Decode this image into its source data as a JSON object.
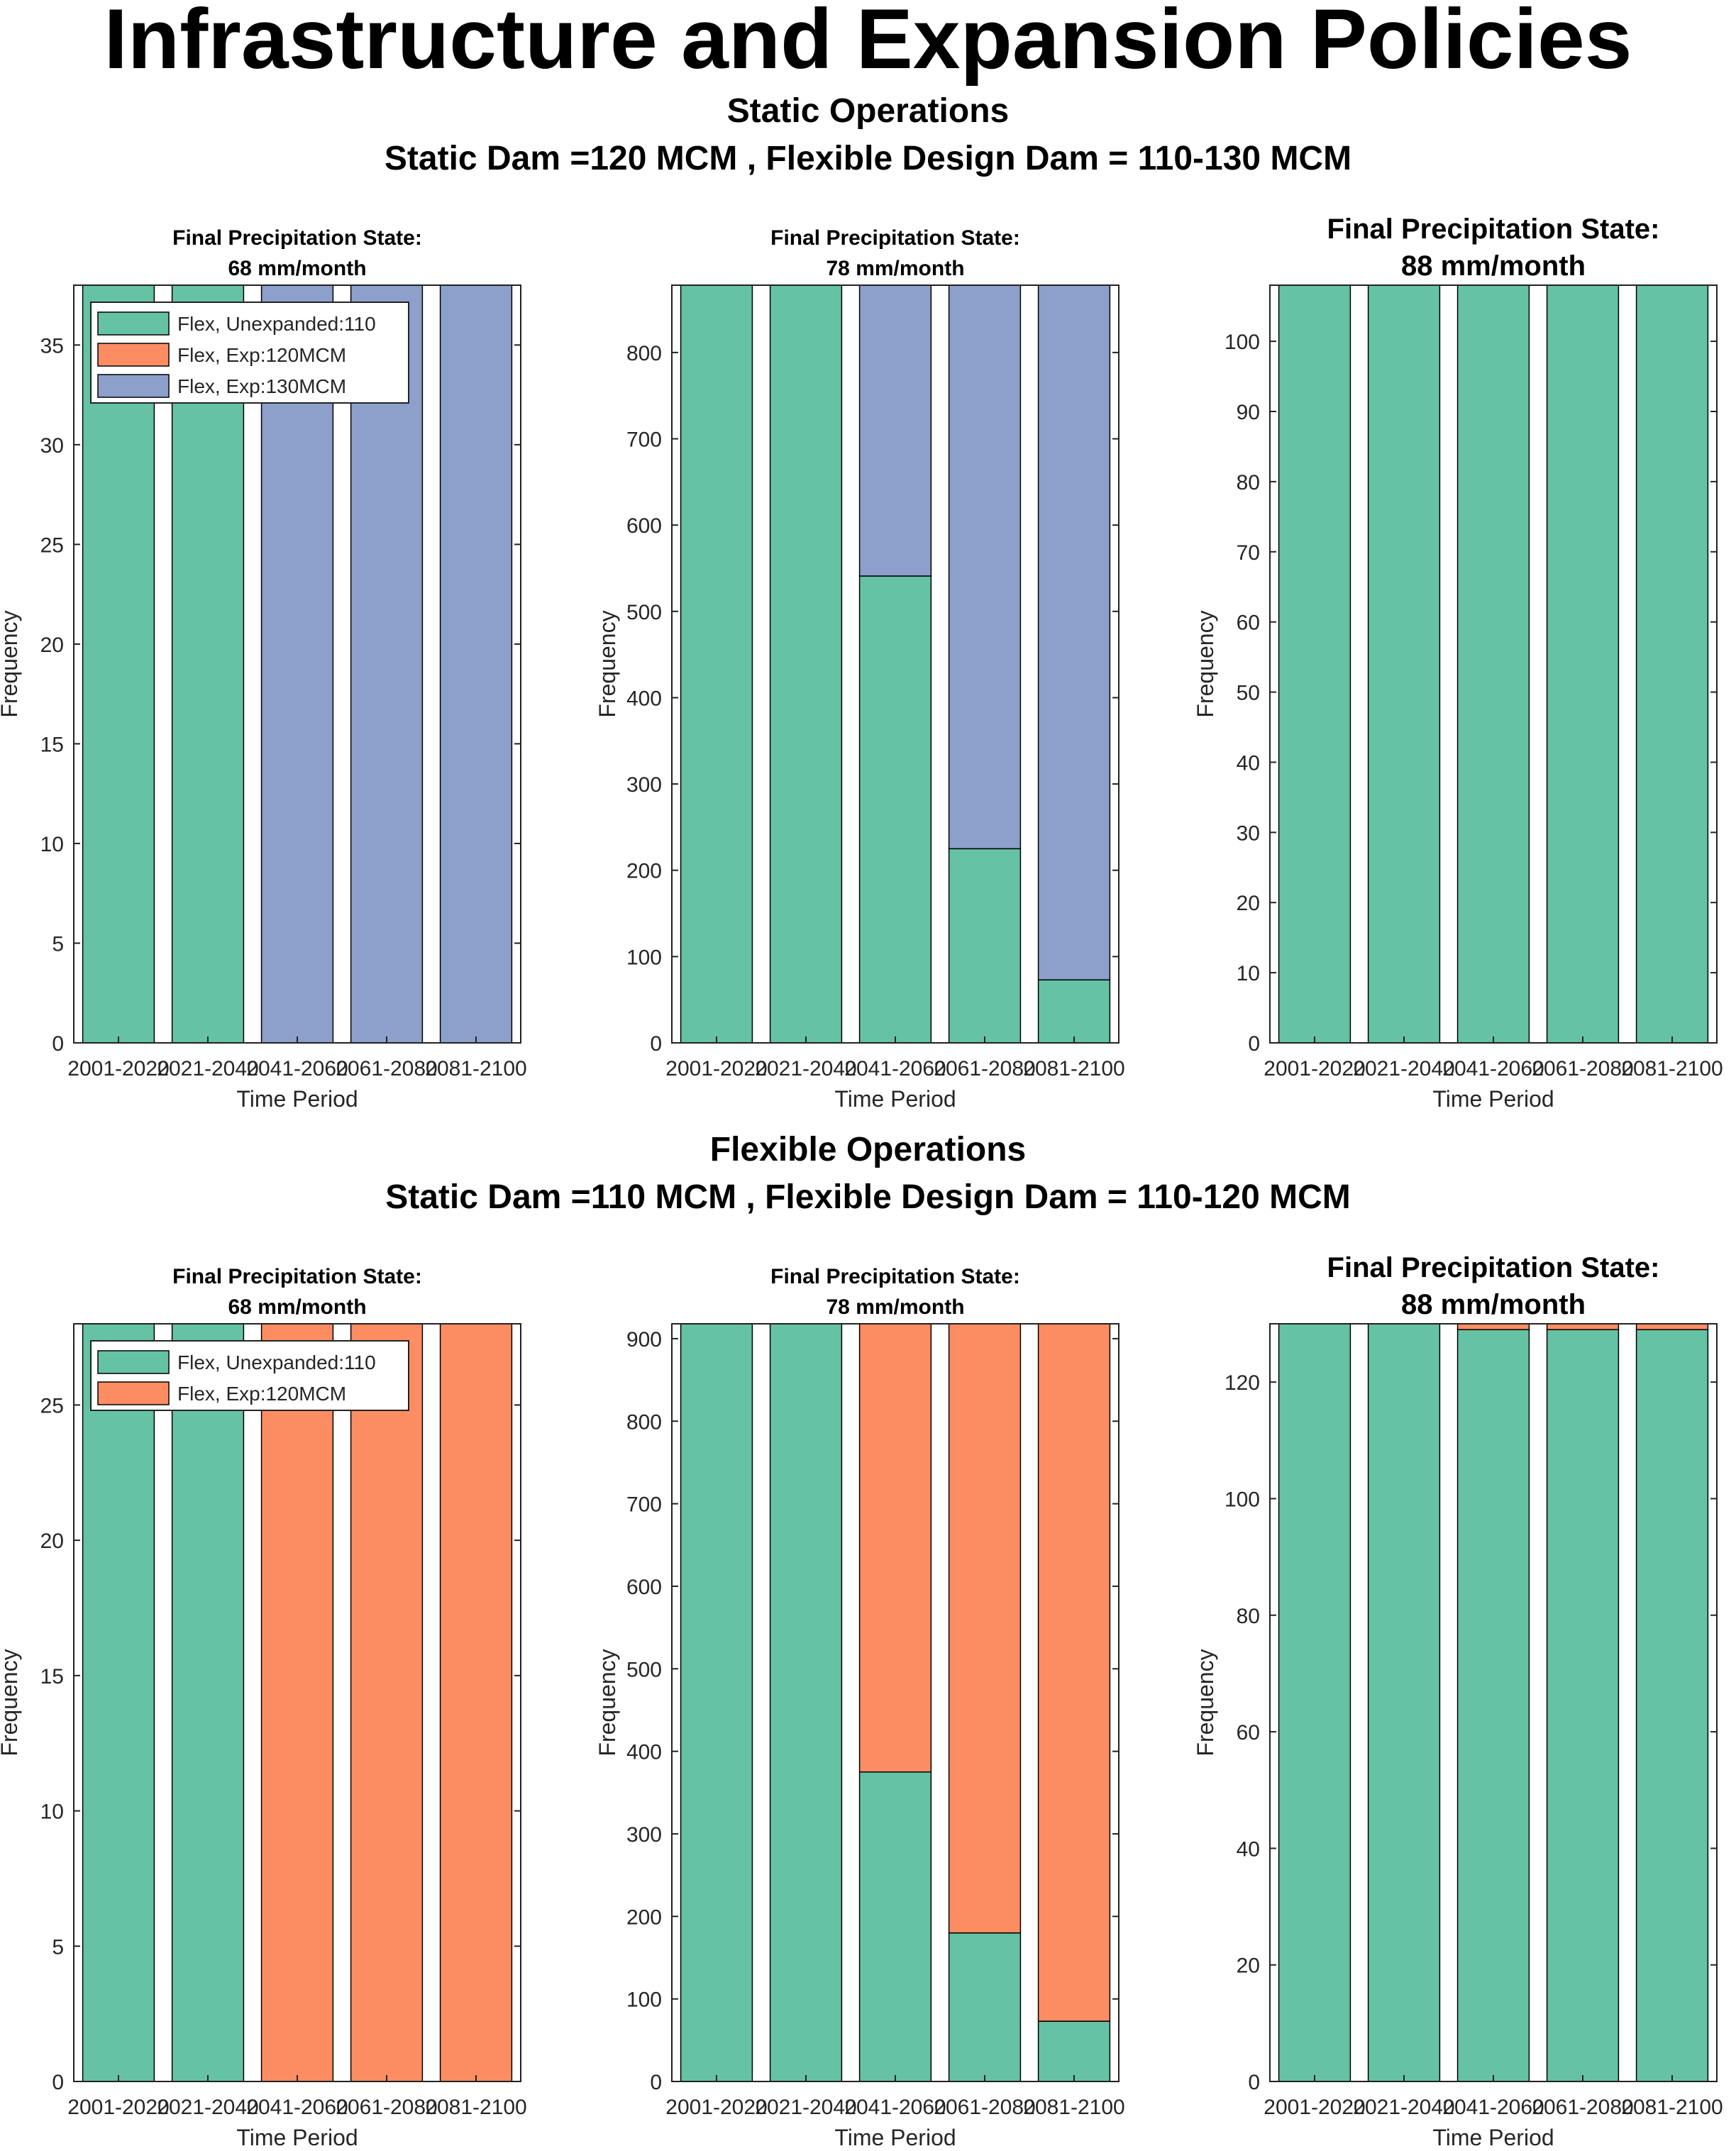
{
  "figure_title": "Infrastructure and Expansion Policies",
  "sections": [
    {
      "title": "Static Operations",
      "subtitle": "Static Dam =120 MCM , Flexible Design Dam = 110-130 MCM"
    },
    {
      "title": "Flexible Operations",
      "subtitle": "Static Dam =110 MCM , Flexible Design Dam = 110-120 MCM"
    }
  ],
  "colors": {
    "unexpanded": "#66c2a5",
    "exp120": "#fc8d62",
    "exp130": "#8da0cb"
  },
  "chart_data": [
    {
      "type": "bar",
      "stacked": true,
      "grid": false,
      "legend_position": "top-left",
      "title": [
        "Final Precipitation State:",
        "68 mm/month"
      ],
      "xlabel": "Time Period",
      "ylabel": "Frequency",
      "categories": [
        "2001-2020",
        "2021-2040",
        "2041-2060",
        "2061-2080",
        "2081-2100"
      ],
      "ylim": [
        0,
        38
      ],
      "yticks": [
        0,
        5,
        10,
        15,
        20,
        25,
        30,
        35
      ],
      "series": [
        {
          "name": "Flex, Unexpanded:110",
          "color": "#66c2a5",
          "values": [
            38,
            38,
            0,
            0,
            0
          ]
        },
        {
          "name": "Flex, Exp:120MCM",
          "color": "#fc8d62",
          "values": [
            0,
            0,
            0,
            0,
            0
          ]
        },
        {
          "name": "Flex, Exp:130MCM",
          "color": "#8da0cb",
          "values": [
            0,
            0,
            38,
            38,
            38
          ]
        }
      ]
    },
    {
      "type": "bar",
      "stacked": true,
      "grid": false,
      "title": [
        "Final Precipitation State:",
        "78 mm/month"
      ],
      "xlabel": "Time Period",
      "ylabel": "Frequency",
      "categories": [
        "2001-2020",
        "2021-2040",
        "2041-2060",
        "2061-2080",
        "2081-2100"
      ],
      "ylim": [
        0,
        878
      ],
      "yticks": [
        0,
        100,
        200,
        300,
        400,
        500,
        600,
        700,
        800
      ],
      "series": [
        {
          "color": "#66c2a5",
          "values": [
            878,
            878,
            541,
            225,
            73
          ]
        },
        {
          "color": "#fc8d62",
          "values": [
            0,
            0,
            0,
            0,
            0
          ]
        },
        {
          "color": "#8da0cb",
          "values": [
            0,
            0,
            337,
            653,
            805
          ]
        }
      ]
    },
    {
      "type": "bar",
      "stacked": true,
      "grid": false,
      "title": [
        "Final Precipitation State:",
        "88 mm/month"
      ],
      "xlabel": "Time Period",
      "ylabel": "Frequency",
      "categories": [
        "2001-2020",
        "2021-2040",
        "2041-2060",
        "2061-2080",
        "2081-2100"
      ],
      "ylim": [
        0,
        108
      ],
      "yticks": [
        0,
        10,
        20,
        30,
        40,
        50,
        60,
        70,
        80,
        90,
        100
      ],
      "series": [
        {
          "color": "#66c2a5",
          "values": [
            108,
            108,
            108,
            108,
            108
          ]
        },
        {
          "color": "#fc8d62",
          "values": [
            0,
            0,
            0,
            0,
            0
          ]
        },
        {
          "color": "#8da0cb",
          "values": [
            0,
            0,
            0,
            0,
            0
          ]
        }
      ]
    },
    {
      "type": "bar",
      "stacked": true,
      "grid": false,
      "legend_position": "top-left",
      "title": [
        "Final Precipitation State:",
        "68 mm/month"
      ],
      "xlabel": "Time Period",
      "ylabel": "Frequency",
      "categories": [
        "2001-2020",
        "2021-2040",
        "2041-2060",
        "2061-2080",
        "2081-2100"
      ],
      "ylim": [
        0,
        28
      ],
      "yticks": [
        0,
        5,
        10,
        15,
        20,
        25
      ],
      "series": [
        {
          "name": "Flex, Unexpanded:110",
          "color": "#66c2a5",
          "values": [
            28,
            28,
            0,
            0,
            0
          ]
        },
        {
          "name": "Flex, Exp:120MCM",
          "color": "#fc8d62",
          "values": [
            0,
            0,
            28,
            28,
            28
          ]
        }
      ]
    },
    {
      "type": "bar",
      "stacked": true,
      "grid": false,
      "title": [
        "Final Precipitation State:",
        "78 mm/month"
      ],
      "xlabel": "Time Period",
      "ylabel": "Frequency",
      "categories": [
        "2001-2020",
        "2021-2040",
        "2041-2060",
        "2061-2080",
        "2081-2100"
      ],
      "ylim": [
        0,
        918
      ],
      "yticks": [
        0,
        100,
        200,
        300,
        400,
        500,
        600,
        700,
        800,
        900
      ],
      "series": [
        {
          "color": "#66c2a5",
          "values": [
            918,
            918,
            375,
            180,
            73
          ]
        },
        {
          "color": "#fc8d62",
          "values": [
            0,
            0,
            543,
            738,
            845
          ]
        }
      ]
    },
    {
      "type": "bar",
      "stacked": true,
      "grid": false,
      "title": [
        "Final Precipitation State:",
        "88 mm/month"
      ],
      "xlabel": "Time Period",
      "ylabel": "Frequency",
      "categories": [
        "2001-2020",
        "2021-2040",
        "2041-2060",
        "2061-2080",
        "2081-2100"
      ],
      "ylim": [
        0,
        130
      ],
      "yticks": [
        0,
        20,
        40,
        60,
        80,
        100,
        120
      ],
      "series": [
        {
          "color": "#66c2a5",
          "values": [
            130,
            130,
            129,
            129,
            129
          ]
        },
        {
          "color": "#fc8d62",
          "values": [
            0,
            0,
            1,
            1,
            1
          ]
        }
      ]
    }
  ]
}
